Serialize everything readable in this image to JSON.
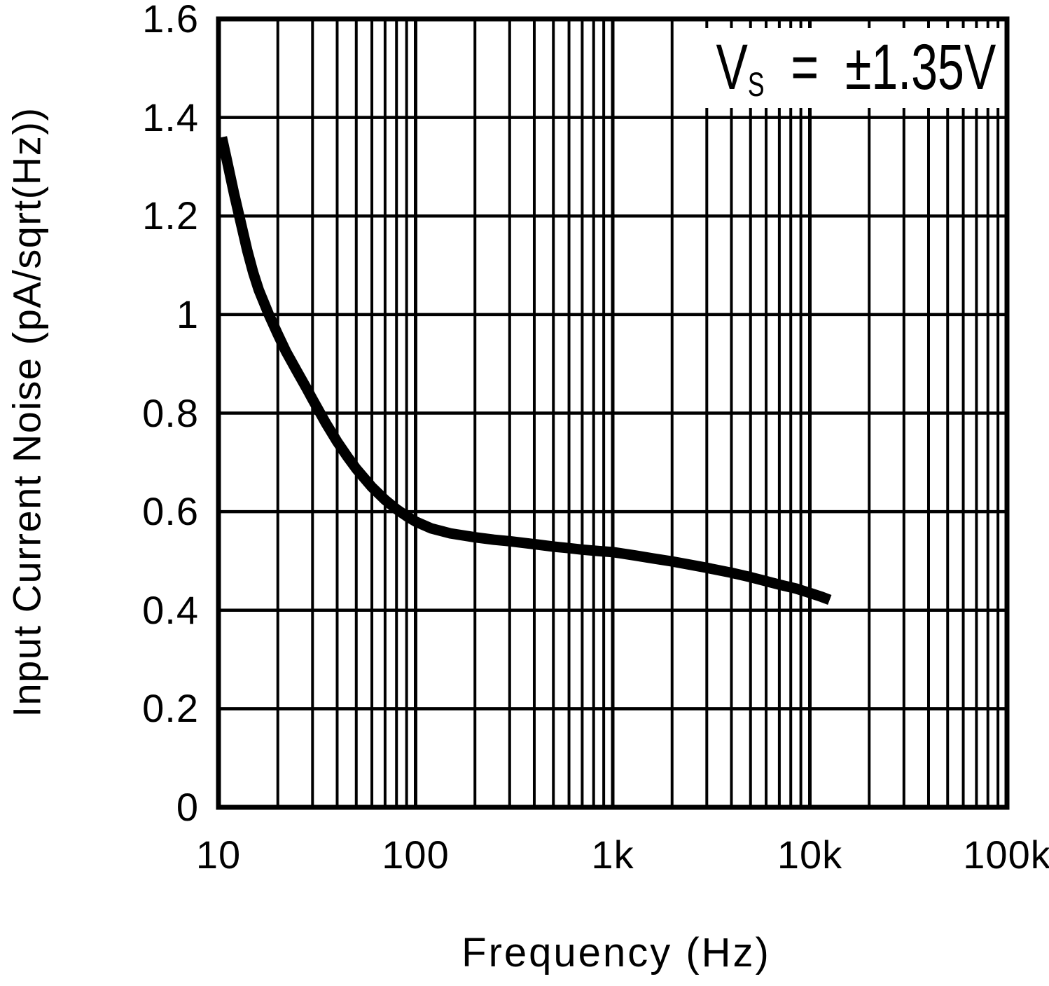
{
  "annotation": {
    "lhs": "V",
    "sub": "S",
    "rest": "  =  ±1.35V"
  },
  "x_axis": {
    "label": "Frequency (Hz)",
    "scale": "log",
    "min": 10,
    "max": 100000,
    "ticks": [
      {
        "value": 10,
        "label": "10"
      },
      {
        "value": 100,
        "label": "100"
      },
      {
        "value": 1000,
        "label": "1k"
      },
      {
        "value": 10000,
        "label": "10k"
      },
      {
        "value": 100000,
        "label": "100k"
      }
    ]
  },
  "y_axis": {
    "label": "Input Current Noise (pA/sqrt(Hz))",
    "scale": "linear",
    "min": 0,
    "max": 1.6,
    "step": 0.2,
    "ticks": [
      {
        "value": 0,
        "label": "0"
      },
      {
        "value": 0.2,
        "label": "0.2"
      },
      {
        "value": 0.4,
        "label": "0.4"
      },
      {
        "value": 0.6,
        "label": "0.6"
      },
      {
        "value": 0.8,
        "label": "0.8"
      },
      {
        "value": 1.0,
        "label": "1"
      },
      {
        "value": 1.2,
        "label": "1.2"
      },
      {
        "value": 1.4,
        "label": "1.4"
      },
      {
        "value": 1.6,
        "label": "1.6"
      }
    ]
  },
  "colors": {
    "ink": "#000000",
    "background": "#ffffff"
  },
  "chart_data": {
    "type": "line",
    "title": "",
    "xlabel": "Frequency (Hz)",
    "ylabel": "Input Current Noise (pA/sqrt(Hz))",
    "x_scale": "log",
    "xlim": [
      10,
      100000
    ],
    "ylim": [
      0,
      1.6
    ],
    "grid": "full log-linear grid, minor decades on x, 0.2 steps on y",
    "legend_position": "top-right inside plot",
    "annotation": "VS = ±1.35V",
    "series": [
      {
        "name": "input-current-noise",
        "color": "#000000",
        "points": [
          [
            10.4,
            1.36
          ],
          [
            11,
            1.315
          ],
          [
            12,
            1.245
          ],
          [
            13,
            1.185
          ],
          [
            14,
            1.13
          ],
          [
            15,
            1.085
          ],
          [
            16,
            1.05
          ],
          [
            18,
            1.0
          ],
          [
            20,
            0.96
          ],
          [
            22,
            0.925
          ],
          [
            25,
            0.885
          ],
          [
            28,
            0.85
          ],
          [
            30,
            0.828
          ],
          [
            35,
            0.78
          ],
          [
            40,
            0.742
          ],
          [
            45,
            0.712
          ],
          [
            50,
            0.687
          ],
          [
            60,
            0.65
          ],
          [
            70,
            0.624
          ],
          [
            80,
            0.605
          ],
          [
            90,
            0.591
          ],
          [
            100,
            0.58
          ],
          [
            120,
            0.566
          ],
          [
            150,
            0.556
          ],
          [
            200,
            0.548
          ],
          [
            250,
            0.543
          ],
          [
            300,
            0.54
          ],
          [
            400,
            0.534
          ],
          [
            500,
            0.529
          ],
          [
            600,
            0.526
          ],
          [
            700,
            0.523
          ],
          [
            850,
            0.52
          ],
          [
            1000,
            0.518
          ],
          [
            1300,
            0.511
          ],
          [
            1600,
            0.505
          ],
          [
            2000,
            0.499
          ],
          [
            2500,
            0.492
          ],
          [
            3000,
            0.486
          ],
          [
            4000,
            0.476
          ],
          [
            5000,
            0.467
          ],
          [
            6000,
            0.459
          ],
          [
            7000,
            0.452
          ],
          [
            8500,
            0.444
          ],
          [
            10000,
            0.435
          ],
          [
            11500,
            0.427
          ],
          [
            12600,
            0.421
          ]
        ]
      }
    ]
  }
}
